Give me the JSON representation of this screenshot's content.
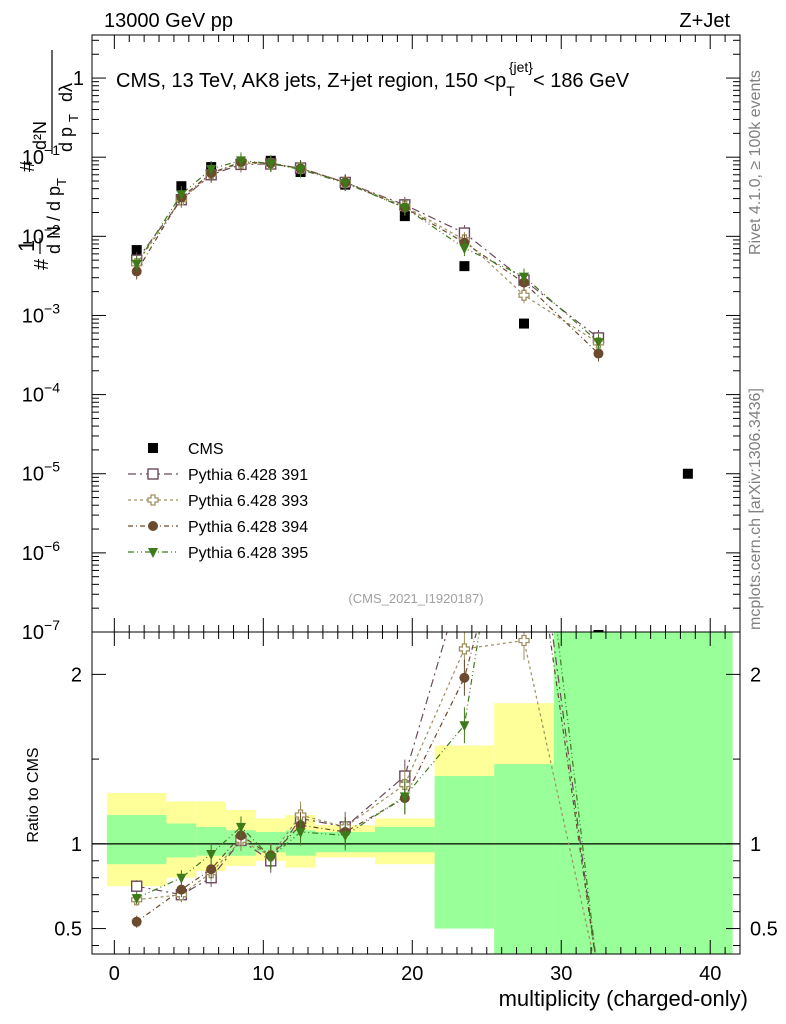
{
  "header": {
    "left": "13000 GeV pp",
    "right": "Z+Jet"
  },
  "side_notes": {
    "rivet": "Rivet 4.1.0, ≥ 100k events",
    "mcplots": "mcplots.cern.ch [arXiv:1306.3436]"
  },
  "analysis_id": "(CMS_2021_I1920187)",
  "colors": {
    "cms": "#000000",
    "p391": "#6b4a5e",
    "p393": "#9e9060",
    "p394": "#6b4a2e",
    "p395": "#3e7a1a",
    "band_inner": "#99ff99",
    "band_outer": "#ffff99"
  },
  "chart_data": [
    {
      "type": "scatter",
      "title": "CMS, 13 TeV, AK8 jets, Z+jet region, 150 <p_T^{jet}< 186 GeV",
      "ylabel": "1/(dN/dp_T) · d²N/(dp_T dλ)",
      "xlabel": "",
      "yscale": "log",
      "ylim": [
        1e-07,
        3.5
      ],
      "xlim": [
        -1.5,
        42
      ],
      "y_ticks": [
        {
          "v": 1,
          "label": "1",
          "exp": ""
        },
        {
          "v": 0.1,
          "label": "10",
          "exp": "−1"
        },
        {
          "v": 0.01,
          "label": "10",
          "exp": "−2"
        },
        {
          "v": 0.001,
          "label": "10",
          "exp": "−3"
        },
        {
          "v": 0.0001,
          "label": "10",
          "exp": "−4"
        },
        {
          "v": 1e-05,
          "label": "10",
          "exp": "−5"
        },
        {
          "v": 1e-06,
          "label": "10",
          "exp": "−6"
        },
        {
          "v": 1e-07,
          "label": "10",
          "exp": "−7"
        }
      ],
      "legend_position": "center-left",
      "series": [
        {
          "name": "CMS",
          "marker": "square-filled",
          "color": "#000000",
          "x": [
            1.5,
            4.5,
            6.5,
            8.5,
            10.5,
            12.5,
            15.5,
            19.5,
            23.5,
            27.5,
            32.5,
            38.5
          ],
          "y": [
            0.0067,
            0.043,
            0.075,
            0.083,
            0.09,
            0.065,
            0.045,
            0.018,
            0.0042,
            0.00079,
            1e-07,
            1e-05
          ]
        },
        {
          "name": "Pythia 6.428 391",
          "marker": "square-open",
          "color": "#6b4a5e",
          "x": [
            1.5,
            4.5,
            6.5,
            8.5,
            10.5,
            12.5,
            15.5,
            19.5,
            23.5,
            27.5,
            32.5
          ],
          "y": [
            0.005,
            0.029,
            0.06,
            0.081,
            0.082,
            0.073,
            0.048,
            0.025,
            0.011,
            0.0028,
            0.00052
          ]
        },
        {
          "name": "Pythia 6.428 393",
          "marker": "cross-open",
          "color": "#9e9060",
          "x": [
            1.5,
            4.5,
            6.5,
            8.5,
            10.5,
            12.5,
            15.5,
            19.5,
            23.5,
            27.5,
            32.5
          ],
          "y": [
            0.0045,
            0.029,
            0.062,
            0.084,
            0.083,
            0.072,
            0.048,
            0.024,
            0.009,
            0.0018,
            0.00045
          ]
        },
        {
          "name": "Pythia 6.428 394",
          "marker": "circle-filled",
          "color": "#6b4a2e",
          "x": [
            1.5,
            4.5,
            6.5,
            8.5,
            10.5,
            12.5,
            15.5,
            19.5,
            23.5,
            27.5,
            32.5
          ],
          "y": [
            0.0036,
            0.031,
            0.063,
            0.087,
            0.084,
            0.072,
            0.048,
            0.023,
            0.0083,
            0.0026,
            0.00033
          ]
        },
        {
          "name": "Pythia 6.428 395",
          "marker": "triangle-down-filled",
          "color": "#3e7a1a",
          "x": [
            1.5,
            4.5,
            6.5,
            8.5,
            10.5,
            12.5,
            15.5,
            19.5,
            23.5,
            27.5,
            32.5
          ],
          "y": [
            0.0045,
            0.034,
            0.071,
            0.091,
            0.083,
            0.07,
            0.047,
            0.023,
            0.0071,
            0.0031,
            0.00046
          ]
        }
      ]
    },
    {
      "type": "line",
      "title": "",
      "ylabel": "Ratio to CMS",
      "xlabel": "multiplicity (charged-only)",
      "ylim": [
        0.35,
        2.25
      ],
      "xlim": [
        -1.5,
        42
      ],
      "y_ticks": [
        0.5,
        1,
        2
      ],
      "x_ticks": [
        0,
        10,
        20,
        30,
        40
      ],
      "bin_edges": [
        -0.5,
        3.5,
        5.5,
        7.5,
        9.5,
        11.5,
        13.5,
        17.5,
        21.5,
        25.5,
        29.5,
        41.5
      ],
      "band_inner": [
        [
          0.88,
          1.17
        ],
        [
          0.92,
          1.12
        ],
        [
          0.93,
          1.1
        ],
        [
          0.93,
          1.08
        ],
        [
          0.95,
          1.07
        ],
        [
          0.93,
          1.08
        ],
        [
          0.95,
          1.07
        ],
        [
          0.95,
          1.1
        ],
        [
          0.5,
          1.4
        ],
        [
          0.35,
          1.47
        ],
        [
          0.35,
          2.25
        ]
      ],
      "band_outer": [
        [
          0.75,
          1.3
        ],
        [
          0.8,
          1.25
        ],
        [
          0.84,
          1.25
        ],
        [
          0.87,
          1.2
        ],
        [
          0.9,
          1.15
        ],
        [
          0.86,
          1.17
        ],
        [
          0.92,
          1.11
        ],
        [
          0.88,
          1.15
        ],
        [
          0.53,
          1.58
        ],
        [
          0.35,
          1.83
        ],
        [
          0.35,
          2.25
        ]
      ],
      "series": [
        {
          "name": "Pythia 6.428 391",
          "color": "#6b4a5e",
          "x": [
            1.5,
            4.5,
            6.5,
            8.5,
            10.5,
            12.5,
            15.5,
            19.5,
            23.5,
            27.5,
            32.5
          ],
          "y": [
            0.75,
            0.7,
            0.8,
            1.02,
            0.9,
            1.15,
            1.1,
            1.4,
            2.6,
            3.5,
            0.2
          ]
        },
        {
          "name": "Pythia 6.428 393",
          "color": "#9e9060",
          "x": [
            1.5,
            4.5,
            6.5,
            8.5,
            10.5,
            12.5,
            15.5,
            19.5,
            23.5,
            27.5,
            32.5
          ],
          "y": [
            0.67,
            0.7,
            0.83,
            1.02,
            0.93,
            1.17,
            1.1,
            1.35,
            2.15,
            2.2,
            0.2
          ]
        },
        {
          "name": "Pythia 6.428 394",
          "color": "#6b4a2e",
          "x": [
            1.5,
            4.5,
            6.5,
            8.5,
            10.5,
            12.5,
            15.5,
            19.5,
            23.5,
            27.5,
            32.5
          ],
          "y": [
            0.54,
            0.73,
            0.85,
            1.05,
            0.93,
            1.11,
            1.07,
            1.27,
            1.98,
            3.3,
            0.2
          ]
        },
        {
          "name": "Pythia 6.428 395",
          "color": "#3e7a1a",
          "x": [
            1.5,
            4.5,
            6.5,
            8.5,
            10.5,
            12.5,
            15.5,
            19.5,
            23.5,
            27.5,
            32.5
          ],
          "y": [
            0.68,
            0.8,
            0.94,
            1.1,
            0.92,
            1.07,
            1.05,
            1.28,
            1.7,
            3.9,
            0.2
          ]
        }
      ]
    }
  ]
}
